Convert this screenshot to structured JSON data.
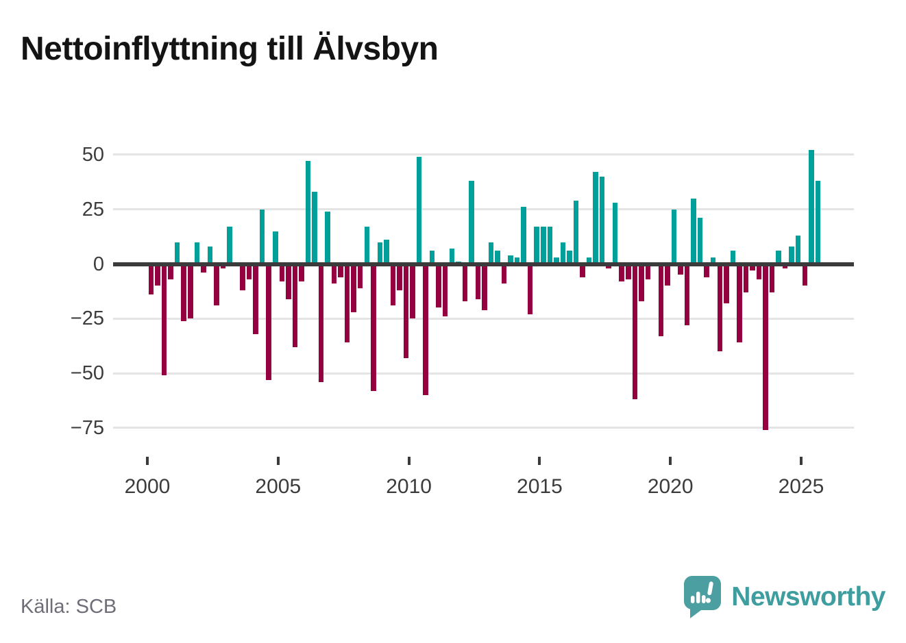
{
  "title": "Nettoinflyttning till Älvsbyn",
  "source": "Källa: SCB",
  "branding": {
    "name": "Newsworthy"
  },
  "colors": {
    "positive": "#00A09A",
    "negative": "#950040",
    "grid": "#E4E4E4",
    "zero_line": "#3B3B3B",
    "axis_text": "#3C3C3C",
    "title_text": "#141414",
    "source_text": "#6E6E78",
    "brand_text": "#3E9D9E",
    "brand_bubble": "#4C9FA0"
  },
  "chart_data": {
    "type": "bar",
    "title": "Nettoinflyttning till Älvsbyn",
    "xlabel": "",
    "ylabel": "",
    "frequency": "quarterly",
    "start": {
      "year": 2000,
      "quarter": 1
    },
    "end": {
      "year": 2025,
      "quarter": 3
    },
    "grid": true,
    "ylim": [
      -80,
      55
    ],
    "y_ticks": [
      50,
      25,
      0,
      -25,
      -50,
      -75
    ],
    "y_tick_labels": [
      "50",
      "25",
      "0",
      "−25",
      "−50",
      "−75"
    ],
    "x_ticks": [
      2000,
      2005,
      2010,
      2015,
      2020,
      2025
    ],
    "x_tick_labels": [
      "2000",
      "2005",
      "2010",
      "2015",
      "2020",
      "2025"
    ],
    "values": [
      -14,
      -10,
      -51,
      -7,
      10,
      -26,
      -25,
      10,
      -4,
      8,
      -19,
      -2,
      17,
      0,
      -12,
      -7,
      -32,
      25,
      -53,
      15,
      -8,
      -16,
      -38,
      -8,
      47,
      33,
      -54,
      24,
      -9,
      -6,
      -36,
      -22,
      -11,
      17,
      -58,
      10,
      11,
      -19,
      -12,
      -43,
      -25,
      49,
      -60,
      6,
      -20,
      -24,
      7,
      1,
      -17,
      38,
      -16,
      -21,
      10,
      6,
      -9,
      4,
      3,
      26,
      -23,
      17,
      17,
      17,
      3,
      10,
      6,
      29,
      -6,
      3,
      42,
      40,
      -2,
      28,
      -8,
      -7,
      -62,
      -17,
      -7,
      0,
      -33,
      -10,
      25,
      -5,
      -28,
      30,
      21,
      -6,
      3,
      -40,
      -18,
      6,
      -36,
      -13,
      -3,
      -7,
      -76,
      -13,
      6,
      -2,
      8,
      13,
      -10,
      52,
      38
    ]
  }
}
